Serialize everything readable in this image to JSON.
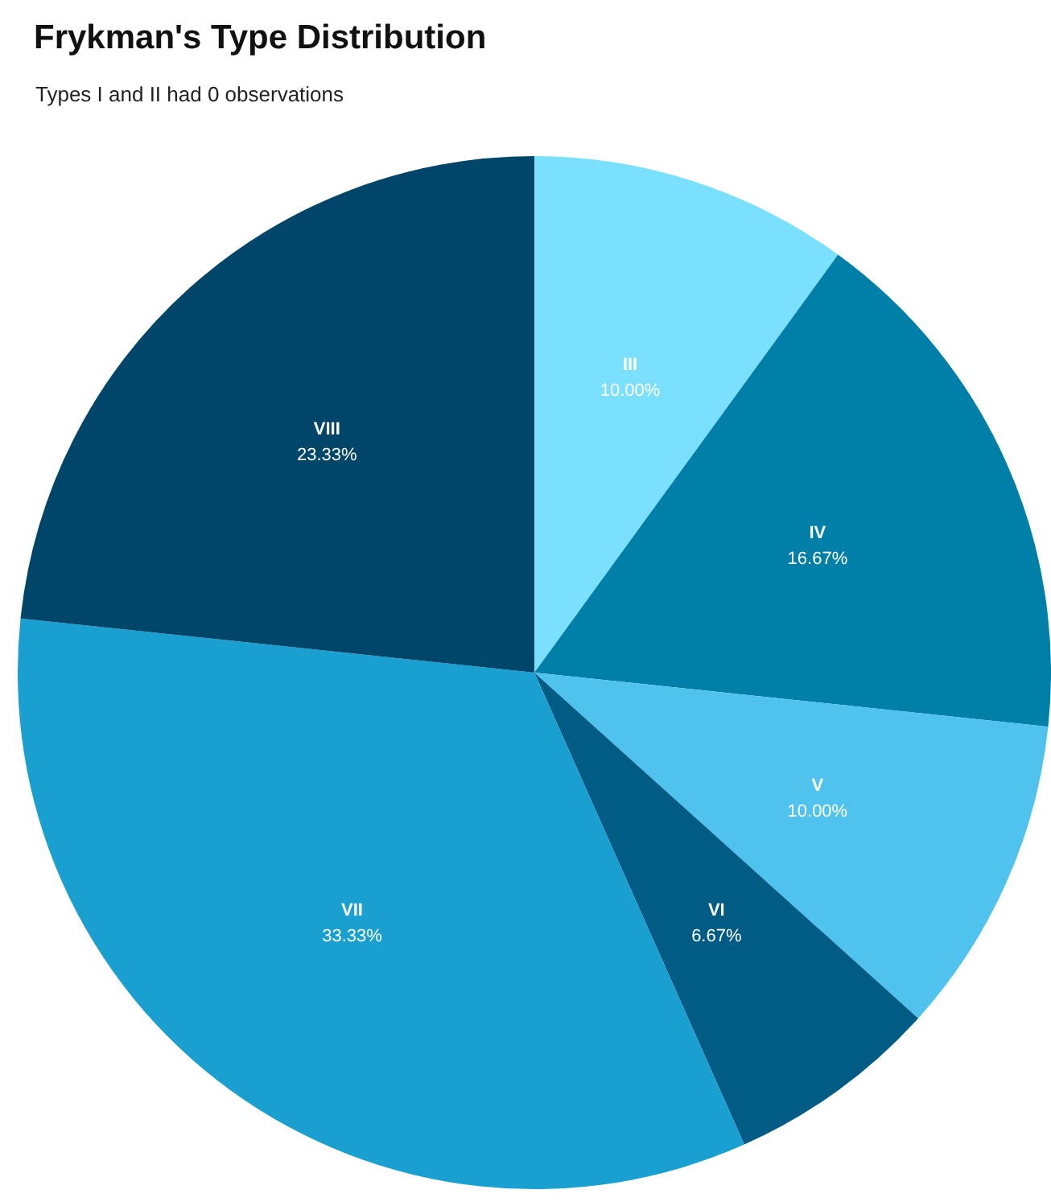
{
  "chart_data": {
    "type": "pie",
    "title": "Frykman's Type Distribution",
    "subtitle": "Types I and II had 0 observations",
    "categories": [
      "III",
      "IV",
      "V",
      "VI",
      "VII",
      "VIII"
    ],
    "values": [
      10,
      16.67,
      10,
      6.67,
      33.33,
      23.33
    ],
    "value_labels": [
      "10.00%",
      "16.67%",
      "10.00%",
      "6.67%",
      "33.33%",
      "23.33%"
    ],
    "colors": [
      "#7ae0fe",
      "#007fa8",
      "#4fc3ee",
      "#005b85",
      "#1aa0d0",
      "#00466b"
    ],
    "legend": false
  }
}
